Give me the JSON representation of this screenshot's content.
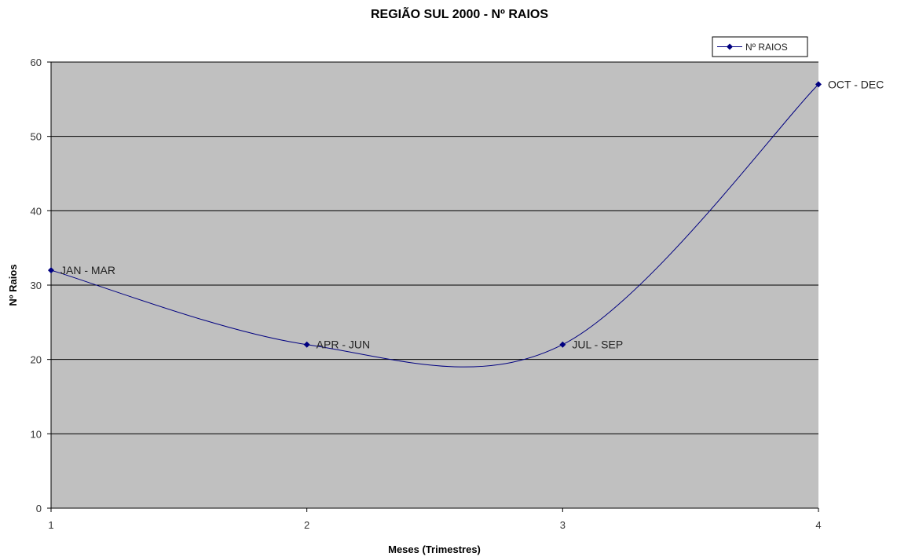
{
  "chart_data": {
    "type": "line",
    "title": "REGIÃO SUL 2000 - Nº RAIOS",
    "xlabel": "Meses (Trimestres)",
    "ylabel": "Nº Raios",
    "x": [
      1,
      2,
      3,
      4
    ],
    "xlim": [
      1,
      4
    ],
    "ylim": [
      0,
      60
    ],
    "xticks": [
      "1",
      "2",
      "3",
      "4"
    ],
    "yticks": [
      "0",
      "10",
      "20",
      "30",
      "40",
      "50",
      "60"
    ],
    "grid": true,
    "smooth": true,
    "legend_position": "top-right",
    "series": [
      {
        "name": "Nº RAIOS",
        "values": [
          32,
          22,
          22,
          57
        ],
        "labels": [
          "JAN - MAR",
          "APR - JUN",
          "JUL - SEP",
          "OCT - DEC"
        ],
        "color": "#000080"
      }
    ],
    "plot_background": "#c0c0c0"
  }
}
